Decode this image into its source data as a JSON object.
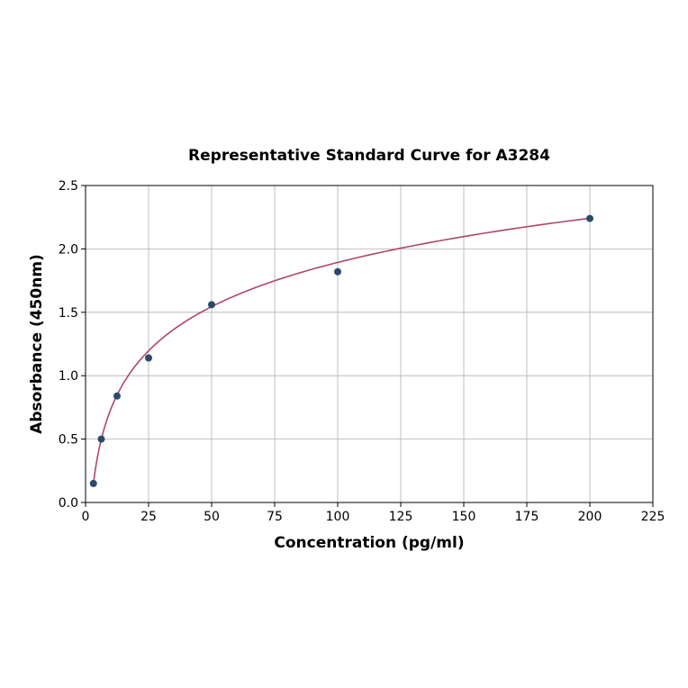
{
  "chart_data": {
    "type": "scatter",
    "title": "Representative Standard Curve for A3284",
    "xlabel": "Concentration (pg/ml)",
    "ylabel": "Absorbance (450nm)",
    "xlim": [
      0,
      225
    ],
    "ylim": [
      0,
      2.5
    ],
    "xticks": [
      0,
      25,
      50,
      75,
      100,
      125,
      150,
      175,
      200,
      225
    ],
    "yticks": [
      "0.0",
      "0.5",
      "1.0",
      "1.5",
      "2.0",
      "2.5"
    ],
    "grid": true,
    "x": [
      3.125,
      6.25,
      12.5,
      25,
      50,
      100,
      200
    ],
    "y": [
      0.15,
      0.5,
      0.84,
      1.14,
      1.56,
      1.82,
      2.24
    ],
    "fit": {
      "type": "log",
      "a": -0.423,
      "b": 0.503,
      "range": [
        3.125,
        200
      ]
    },
    "colors": {
      "points": "#2b4a6b",
      "curve": "#b0476a",
      "grid": "#b0b0b0"
    }
  }
}
